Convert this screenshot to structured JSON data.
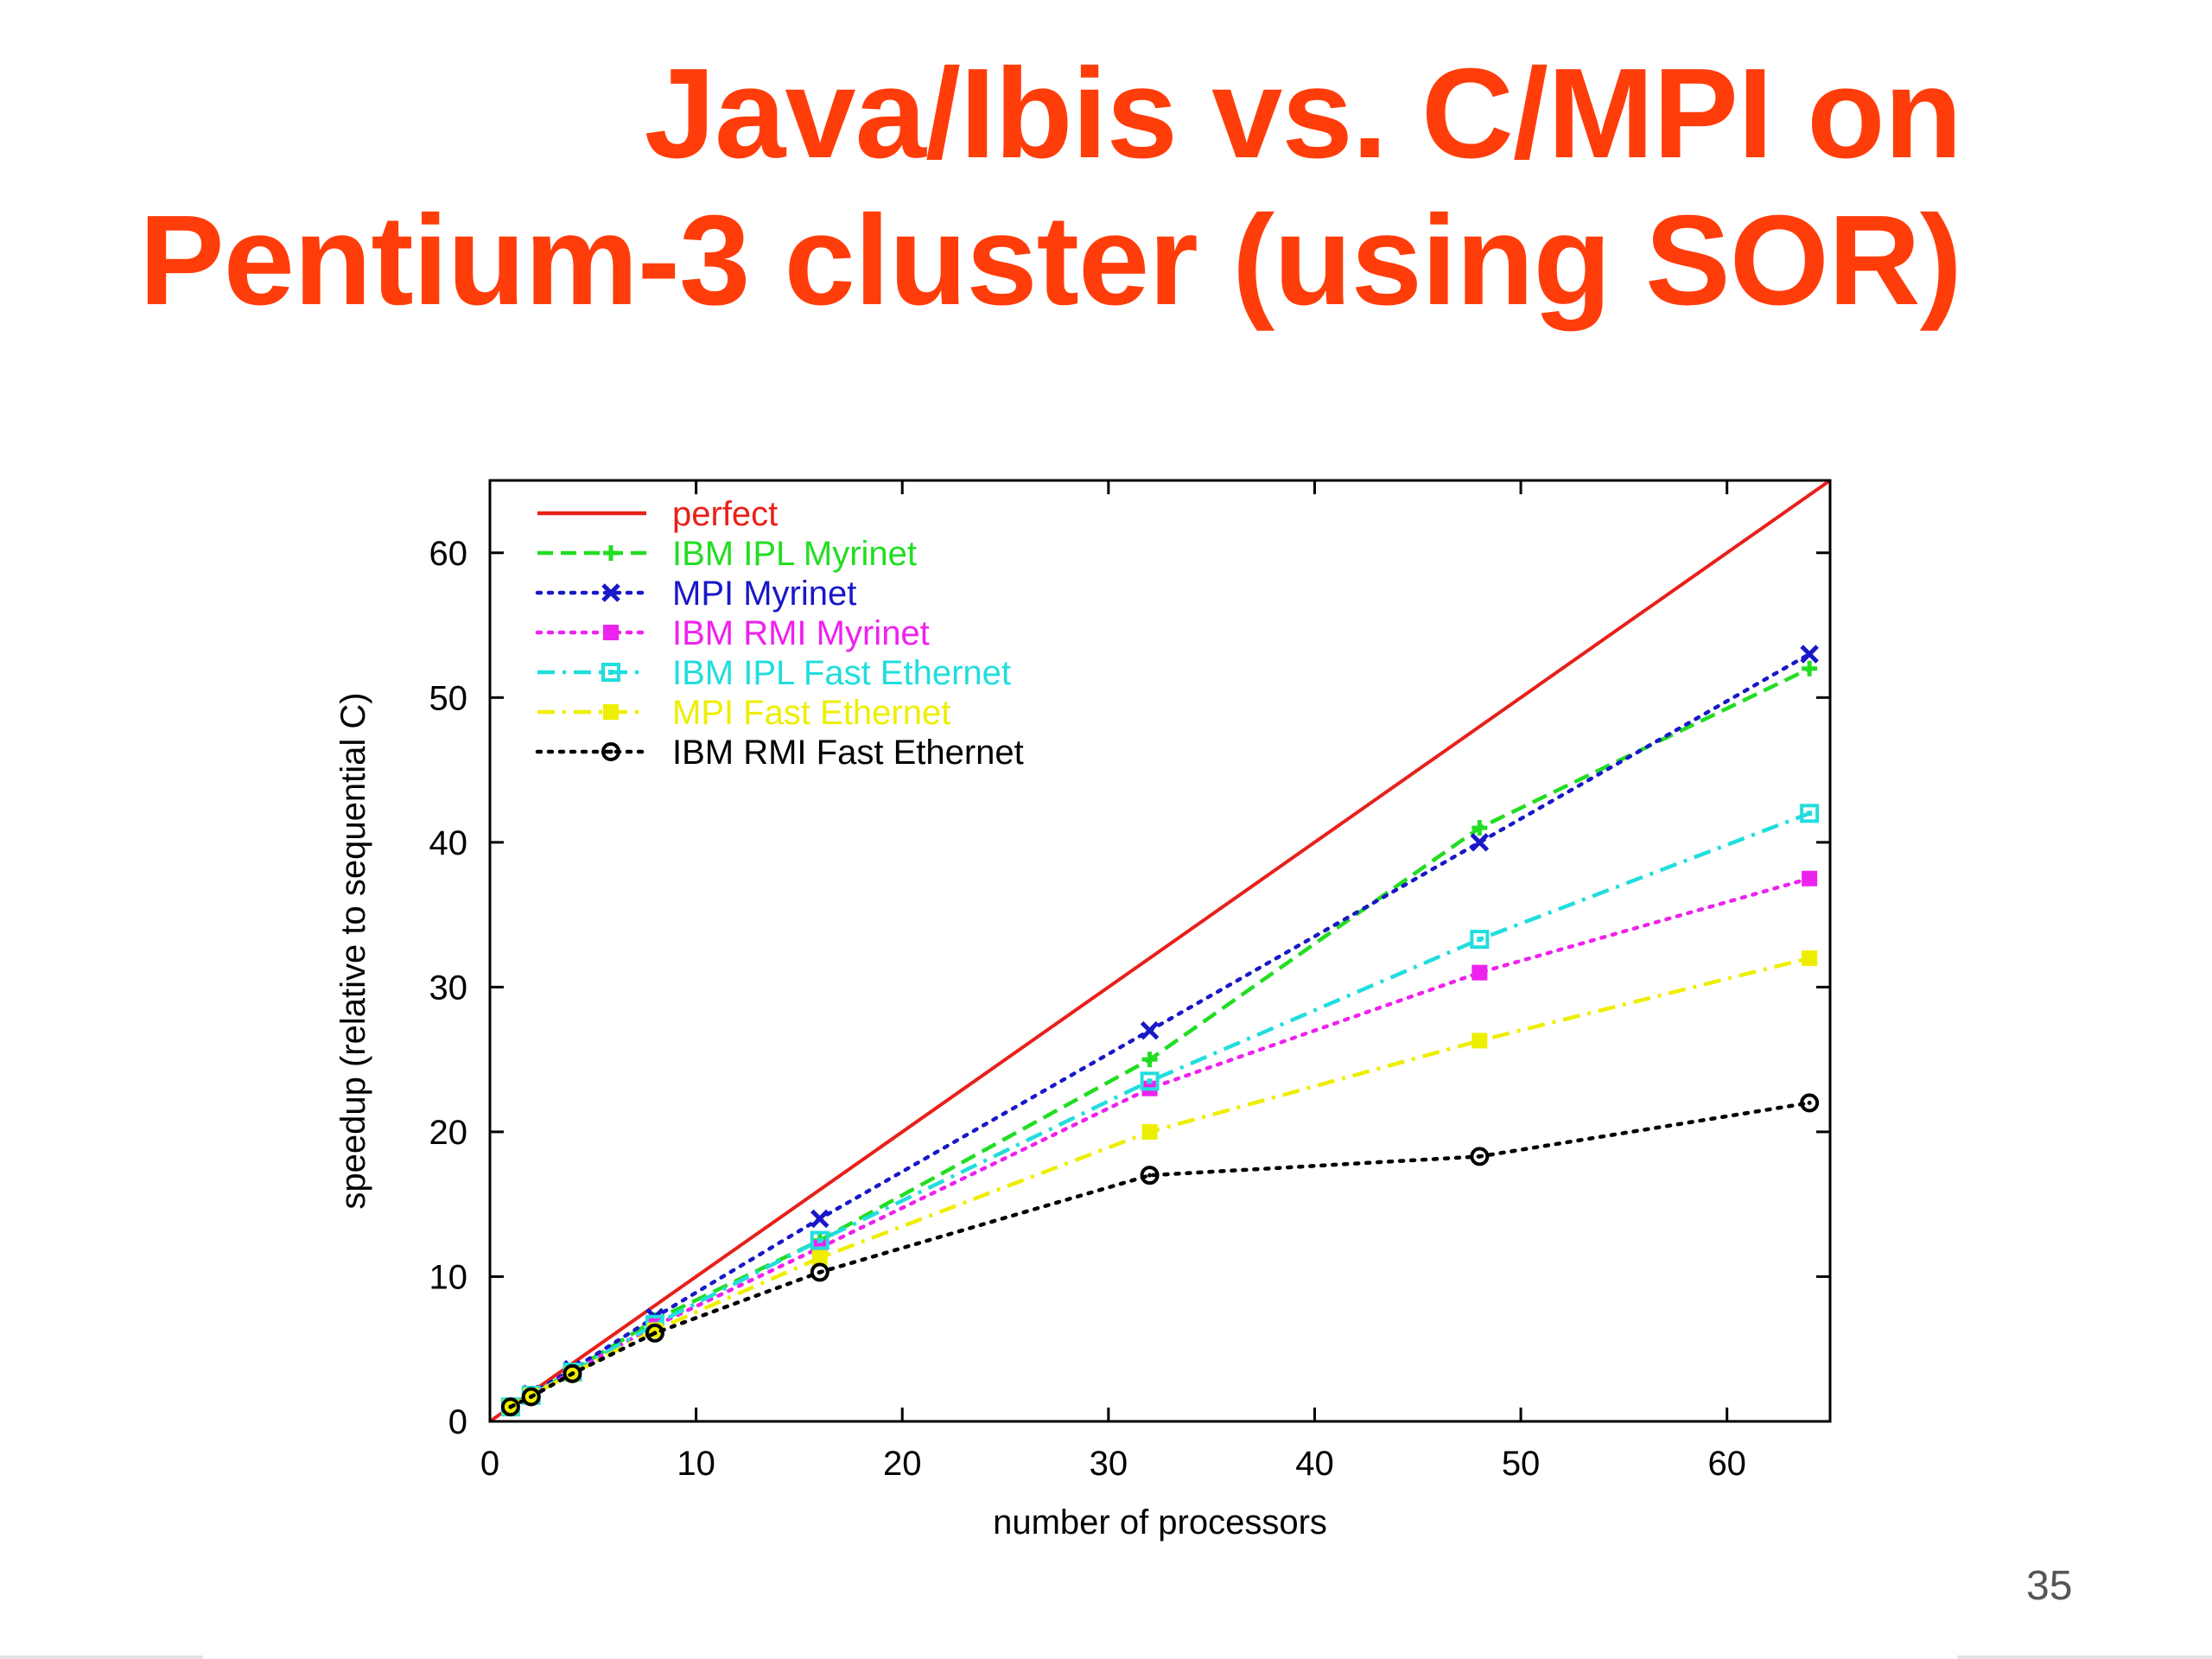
{
  "slide": {
    "title_line_1": "Java/Ibis vs. C/MPI on",
    "title_line_2": "Pentium-3 cluster (using SOR)",
    "page_number": "35",
    "title_color": "#ff3d0b"
  },
  "chart_data": {
    "type": "line",
    "title": "",
    "xlabel": "number of processors",
    "ylabel": "speedup (relative to sequential C)",
    "xlim": [
      0,
      65
    ],
    "ylim": [
      0,
      65
    ],
    "xticks": [
      0,
      10,
      20,
      30,
      40,
      50,
      60
    ],
    "yticks": [
      0,
      10,
      20,
      30,
      40,
      50,
      60
    ],
    "grid": false,
    "legend_position": "top-left",
    "series": [
      {
        "name": "perfect",
        "color": "#e8201a",
        "dash": "solid",
        "marker": "none",
        "x": [
          0,
          65
        ],
        "y": [
          0,
          65
        ]
      },
      {
        "name": "IBM IPL Myrinet",
        "color": "#22dd22",
        "dash": "dashed",
        "marker": "plus",
        "x": [
          1,
          2,
          4,
          8,
          16,
          32,
          48,
          64
        ],
        "y": [
          1,
          1.8,
          3.5,
          7,
          12.5,
          25,
          41,
          52
        ]
      },
      {
        "name": "MPI Myrinet",
        "color": "#1818c8",
        "dash": "dotted",
        "marker": "cross",
        "x": [
          1,
          2,
          4,
          8,
          16,
          32,
          48,
          64
        ],
        "y": [
          1,
          1.9,
          3.6,
          7.2,
          14,
          27,
          40,
          53
        ]
      },
      {
        "name": "IBM RMI Myrinet",
        "color": "#ee22ee",
        "dash": "dotted",
        "marker": "filled-square",
        "x": [
          1,
          2,
          4,
          8,
          16,
          32,
          48,
          64
        ],
        "y": [
          1,
          1.8,
          3.4,
          6.6,
          12,
          23,
          31,
          37.5
        ]
      },
      {
        "name": "IBM IPL Fast Ethernet",
        "color": "#22dddd",
        "dash": "dashdot",
        "marker": "open-square",
        "x": [
          1,
          2,
          4,
          8,
          16,
          32,
          48,
          64
        ],
        "y": [
          1,
          1.8,
          3.4,
          6.7,
          12.5,
          23.5,
          33.3,
          42
        ]
      },
      {
        "name": "MPI Fast Ethernet",
        "color": "#eeee00",
        "dash": "dashdot",
        "marker": "filled-square",
        "x": [
          1,
          2,
          4,
          8,
          16,
          32,
          48,
          64
        ],
        "y": [
          1,
          1.8,
          3.3,
          6.3,
          11.3,
          20,
          26.3,
          32
        ]
      },
      {
        "name": "IBM RMI Fast Ethernet",
        "color": "#000000",
        "dash": "dotted",
        "marker": "open-circle",
        "x": [
          1,
          2,
          4,
          8,
          16,
          32,
          48,
          64
        ],
        "y": [
          1,
          1.7,
          3.3,
          6.1,
          10.3,
          17,
          18.3,
          22
        ]
      }
    ]
  }
}
